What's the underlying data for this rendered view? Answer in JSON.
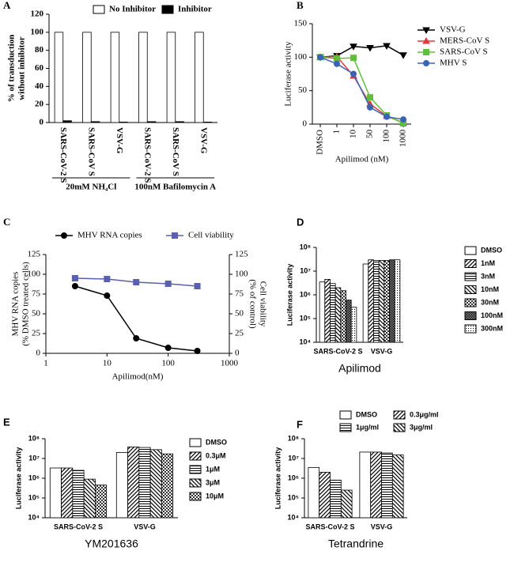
{
  "chart_data": [
    {
      "panel": "A",
      "type": "bar",
      "y_label": [
        "% of transduction",
        "without inhibitor"
      ],
      "groups": [
        {
          "label": "20mM NH₄Cl",
          "categories": [
            "SARS-CoV-2 S",
            "SARS-CoV S",
            "VSV-G"
          ]
        },
        {
          "label": "100nM Bafilomycin A",
          "categories": [
            "SARS-CoV-2 S",
            "SARS-CoV S",
            "VSV-G"
          ]
        }
      ],
      "series": [
        {
          "name": "No Inhibitor",
          "color": "#ffffff",
          "values": [
            100,
            100,
            100,
            100,
            100,
            100
          ]
        },
        {
          "name": "Inhibitor",
          "color": "#000000",
          "values": [
            2,
            1,
            0.5,
            1,
            1,
            0.5
          ]
        }
      ],
      "ylim": [
        0,
        120
      ],
      "yticks": [
        0,
        20,
        40,
        60,
        80,
        100,
        120
      ],
      "legend": "top"
    },
    {
      "panel": "B",
      "type": "line",
      "categories": [
        "DMSO",
        "1",
        "10",
        "50",
        "100",
        "1000"
      ],
      "x_label": "Apilimod (nM)",
      "y_label": "Luciferase activity",
      "ylim": [
        0,
        150
      ],
      "yticks": [
        0,
        50,
        100,
        150
      ],
      "legend": "right",
      "series": [
        {
          "name": "VSV-G",
          "color": "#000000",
          "marker": "triangle-down",
          "values": [
            100,
            102,
            116,
            114,
            117,
            103
          ]
        },
        {
          "name": "MERS-CoV S",
          "color": "#e0393e",
          "marker": "triangle",
          "values": [
            100,
            101,
            72,
            30,
            12,
            2
          ]
        },
        {
          "name": "SARS-CoV S",
          "color": "#5fbf3a",
          "marker": "square",
          "values": [
            100,
            98,
            99,
            40,
            13,
            1
          ]
        },
        {
          "name": "MHV S",
          "color": "#3b63b5",
          "marker": "circle",
          "values": [
            100,
            90,
            75,
            25,
            11,
            7
          ]
        }
      ]
    },
    {
      "panel": "C",
      "type": "line",
      "x": [
        3,
        10,
        30,
        100,
        300
      ],
      "xlim": [
        1,
        1000
      ],
      "xticks": [
        1,
        10,
        100,
        1000
      ],
      "xlog": true,
      "x_label": "Apilimod(nM)",
      "y_label": [
        "MHV RNA copies",
        "(% DMSO treated cells)"
      ],
      "y2_label": [
        "Cell viability",
        "(% of control)"
      ],
      "ylim": [
        0,
        125
      ],
      "yticks": [
        0,
        25,
        50,
        75,
        100,
        125
      ],
      "y2lim": [
        0,
        125
      ],
      "y2ticks": [
        0,
        25,
        50,
        75,
        100,
        125
      ],
      "legend": "top",
      "series": [
        {
          "name": "MHV RNA copies",
          "color": "#000000",
          "marker": "circle",
          "values": [
            85,
            73,
            19,
            7,
            3
          ]
        },
        {
          "name": "Cell viability",
          "color": "#5a5fae",
          "marker": "square",
          "axis": "y2",
          "values": [
            95,
            94,
            90,
            88,
            85
          ]
        }
      ]
    },
    {
      "panel": "D",
      "type": "bar",
      "ylog": true,
      "ylim": [
        10000,
        100000000
      ],
      "yticks": [
        {
          "value": 10000,
          "label": "10⁴"
        },
        {
          "value": 100000,
          "label": "10⁵"
        },
        {
          "value": 1000000,
          "label": "10⁶"
        },
        {
          "value": 10000000,
          "label": "10⁷"
        },
        {
          "value": 100000000,
          "label": "10⁸"
        }
      ],
      "y_label": "Luciferase activity",
      "x_label": "Apilimod",
      "categories": [
        "SARS-CoV-2 S",
        "VSV-G"
      ],
      "legend": "right",
      "series": [
        {
          "name": "DMSO",
          "color": "#ffffff",
          "values": [
            3500000,
            20000000
          ]
        },
        {
          "name": "1nM",
          "color": "#000000",
          "pattern": "diagonal",
          "values": [
            4500000,
            30000000
          ]
        },
        {
          "name": "3nM",
          "color": "#000000",
          "pattern": "horizontal",
          "values": [
            3000000,
            28000000
          ]
        },
        {
          "name": "10nM",
          "color": "#000000",
          "pattern": "backslash",
          "values": [
            2000000,
            28000000
          ]
        },
        {
          "name": "30nM",
          "color": "#000000",
          "pattern": "checker",
          "values": [
            1500000,
            28000000
          ]
        },
        {
          "name": "100nM",
          "color": "#000000",
          "pattern": "dense",
          "values": [
            600000,
            30000000
          ]
        },
        {
          "name": "300nM",
          "color": "#000000",
          "pattern": "dots",
          "values": [
            300000,
            30000000
          ]
        }
      ]
    },
    {
      "panel": "E",
      "type": "bar",
      "ylog": true,
      "ylim": [
        10000,
        100000000
      ],
      "yticks": [
        {
          "value": 10000,
          "label": "10⁴"
        },
        {
          "value": 100000,
          "label": "10⁵"
        },
        {
          "value": 1000000,
          "label": "10⁶"
        },
        {
          "value": 10000000,
          "label": "10⁷"
        },
        {
          "value": 100000000,
          "label": "10⁸"
        }
      ],
      "y_label": "Luciferase activity",
      "x_label": "YM201636",
      "categories": [
        "SARS-CoV-2 S",
        "VSV-G"
      ],
      "legend": "right",
      "series": [
        {
          "name": "DMSO",
          "color": "#ffffff",
          "values": [
            3300000,
            20000000
          ]
        },
        {
          "name": "0.3μM",
          "color": "#000000",
          "pattern": "diagonal",
          "values": [
            3300000,
            38000000
          ]
        },
        {
          "name": "1μM",
          "color": "#000000",
          "pattern": "horizontal",
          "values": [
            2500000,
            36000000
          ]
        },
        {
          "name": "3μM",
          "color": "#000000",
          "pattern": "backslash",
          "values": [
            900000,
            28000000
          ]
        },
        {
          "name": "10μM",
          "color": "#000000",
          "pattern": "checker",
          "values": [
            450000,
            17000000
          ]
        }
      ]
    },
    {
      "panel": "F",
      "type": "bar",
      "ylog": true,
      "ylim": [
        10000,
        100000000
      ],
      "yticks": [
        {
          "value": 10000,
          "label": "10⁴"
        },
        {
          "value": 100000,
          "label": "10⁵"
        },
        {
          "value": 1000000,
          "label": "10⁶"
        },
        {
          "value": 10000000,
          "label": "10⁷"
        },
        {
          "value": 100000000,
          "label": "10⁸"
        }
      ],
      "y_label": "Luciferase activity",
      "x_label": "Tetrandrine",
      "categories": [
        "SARS-CoV-2 S",
        "VSV-G"
      ],
      "legend": "top",
      "series": [
        {
          "name": "DMSO",
          "color": "#ffffff",
          "values": [
            3500000,
            21000000
          ]
        },
        {
          "name": "0.3μg/ml",
          "color": "#000000",
          "pattern": "diagonal",
          "values": [
            2000000,
            21000000
          ]
        },
        {
          "name": "1μg/ml",
          "color": "#000000",
          "pattern": "horizontal",
          "values": [
            800000,
            19000000
          ]
        },
        {
          "name": "3μg/ml",
          "color": "#000000",
          "pattern": "backslash",
          "values": [
            250000,
            15000000
          ]
        }
      ]
    }
  ]
}
